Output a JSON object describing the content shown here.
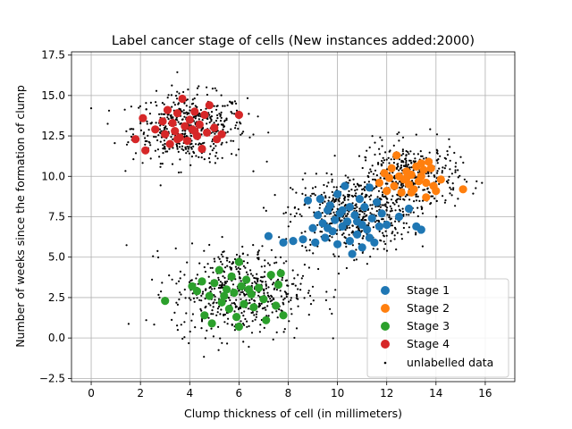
{
  "chart_data": {
    "type": "scatter",
    "title": "Label cancer stage of cells (New instances added:2000)",
    "xlabel": "Clump thickness of cell (in millimeters)",
    "ylabel": "Number of weeks since the formation of clump",
    "xlim": [
      -0.8,
      17.2
    ],
    "ylim": [
      -2.7,
      17.7
    ],
    "xticks": [
      0,
      2,
      4,
      6,
      8,
      10,
      12,
      14,
      16
    ],
    "yticks": [
      -2.5,
      0.0,
      2.5,
      5.0,
      7.5,
      10.0,
      12.5,
      15.0,
      17.5
    ],
    "xtick_labels": [
      "0",
      "2",
      "4",
      "6",
      "8",
      "10",
      "12",
      "14",
      "16"
    ],
    "ytick_labels": [
      "−2.5",
      "0.0",
      "2.5",
      "5.0",
      "7.5",
      "10.0",
      "12.5",
      "15.0",
      "17.5"
    ],
    "grid": true,
    "legend_position": "lower-right",
    "series": [
      {
        "name": "Stage 1",
        "color": "#1f77b4",
        "marker": "large-dot",
        "points": [
          [
            7.2,
            6.3
          ],
          [
            7.8,
            5.9
          ],
          [
            8.2,
            6.0
          ],
          [
            8.6,
            6.1
          ],
          [
            8.8,
            8.5
          ],
          [
            9.0,
            6.8
          ],
          [
            9.1,
            5.9
          ],
          [
            9.2,
            7.6
          ],
          [
            9.3,
            8.6
          ],
          [
            9.4,
            7.1
          ],
          [
            9.5,
            6.2
          ],
          [
            9.6,
            7.9
          ],
          [
            9.7,
            8.2
          ],
          [
            9.8,
            6.6
          ],
          [
            9.9,
            7.3
          ],
          [
            10.0,
            5.8
          ],
          [
            10.0,
            8.9
          ],
          [
            10.1,
            7.7
          ],
          [
            10.2,
            6.9
          ],
          [
            10.3,
            9.4
          ],
          [
            10.4,
            7.2
          ],
          [
            10.5,
            6.0
          ],
          [
            10.5,
            8.1
          ],
          [
            10.6,
            5.2
          ],
          [
            10.7,
            7.6
          ],
          [
            10.8,
            6.4
          ],
          [
            10.9,
            8.6
          ],
          [
            11.0,
            5.6
          ],
          [
            11.0,
            7.0
          ],
          [
            11.1,
            8.1
          ],
          [
            11.2,
            6.7
          ],
          [
            11.3,
            9.3
          ],
          [
            11.4,
            7.4
          ],
          [
            11.5,
            5.9
          ],
          [
            11.6,
            8.4
          ],
          [
            11.7,
            6.9
          ],
          [
            11.8,
            7.7
          ],
          [
            12.0,
            7.0
          ],
          [
            12.5,
            7.5
          ],
          [
            12.9,
            8.0
          ],
          [
            13.2,
            6.9
          ],
          [
            13.4,
            6.7
          ],
          [
            10.2,
            7.9
          ],
          [
            9.6,
            6.8
          ],
          [
            10.8,
            7.2
          ],
          [
            11.3,
            6.2
          ]
        ]
      },
      {
        "name": "Stage 2",
        "color": "#ff7f0e",
        "marker": "large-dot",
        "points": [
          [
            11.7,
            9.6
          ],
          [
            11.9,
            10.2
          ],
          [
            12.0,
            9.1
          ],
          [
            12.1,
            9.9
          ],
          [
            12.2,
            10.5
          ],
          [
            12.3,
            9.4
          ],
          [
            12.4,
            11.3
          ],
          [
            12.5,
            10.0
          ],
          [
            12.6,
            9.0
          ],
          [
            12.7,
            9.8
          ],
          [
            12.8,
            10.3
          ],
          [
            12.9,
            9.5
          ],
          [
            13.0,
            10.1
          ],
          [
            13.1,
            9.2
          ],
          [
            13.2,
            10.6
          ],
          [
            13.3,
            9.7
          ],
          [
            13.4,
            10.0
          ],
          [
            13.5,
            10.4
          ],
          [
            13.6,
            9.6
          ],
          [
            13.6,
            8.7
          ],
          [
            13.7,
            10.9
          ],
          [
            13.8,
            10.5
          ],
          [
            13.9,
            9.4
          ],
          [
            14.0,
            9.1
          ],
          [
            14.2,
            9.8
          ],
          [
            15.1,
            9.2
          ],
          [
            13.0,
            9.0
          ],
          [
            12.8,
            9.9
          ],
          [
            13.4,
            10.8
          ]
        ]
      },
      {
        "name": "Stage 3",
        "color": "#2ca02c",
        "marker": "large-dot",
        "points": [
          [
            3.0,
            2.3
          ],
          [
            4.1,
            3.2
          ],
          [
            4.3,
            2.9
          ],
          [
            4.5,
            3.5
          ],
          [
            4.6,
            1.4
          ],
          [
            4.8,
            2.6
          ],
          [
            4.9,
            0.9
          ],
          [
            5.0,
            3.4
          ],
          [
            5.2,
            4.2
          ],
          [
            5.3,
            2.2
          ],
          [
            5.5,
            3.0
          ],
          [
            5.6,
            1.8
          ],
          [
            5.7,
            3.8
          ],
          [
            5.8,
            2.8
          ],
          [
            5.9,
            1.3
          ],
          [
            6.0,
            4.7
          ],
          [
            6.0,
            0.7
          ],
          [
            6.1,
            3.2
          ],
          [
            6.2,
            2.1
          ],
          [
            6.3,
            3.6
          ],
          [
            6.5,
            2.7
          ],
          [
            6.6,
            1.9
          ],
          [
            6.8,
            3.1
          ],
          [
            7.0,
            2.4
          ],
          [
            7.1,
            1.1
          ],
          [
            7.3,
            3.9
          ],
          [
            7.5,
            2.0
          ],
          [
            7.6,
            3.3
          ],
          [
            7.7,
            4.0
          ],
          [
            7.8,
            1.4
          ],
          [
            5.4,
            2.6
          ],
          [
            6.4,
            3.0
          ]
        ]
      },
      {
        "name": "Stage 4",
        "color": "#d62728",
        "marker": "large-dot",
        "points": [
          [
            1.8,
            12.3
          ],
          [
            2.1,
            13.6
          ],
          [
            2.2,
            11.6
          ],
          [
            2.6,
            12.9
          ],
          [
            2.9,
            13.4
          ],
          [
            3.0,
            12.6
          ],
          [
            3.1,
            14.1
          ],
          [
            3.2,
            12.0
          ],
          [
            3.3,
            13.3
          ],
          [
            3.4,
            12.8
          ],
          [
            3.5,
            13.9
          ],
          [
            3.6,
            12.4
          ],
          [
            3.7,
            14.8
          ],
          [
            3.8,
            13.1
          ],
          [
            3.9,
            12.2
          ],
          [
            4.0,
            13.5
          ],
          [
            4.1,
            12.9
          ],
          [
            4.2,
            14.0
          ],
          [
            4.3,
            12.5
          ],
          [
            4.4,
            13.2
          ],
          [
            4.5,
            11.7
          ],
          [
            4.6,
            13.8
          ],
          [
            4.7,
            12.7
          ],
          [
            4.8,
            14.4
          ],
          [
            5.0,
            13.0
          ],
          [
            5.1,
            12.3
          ],
          [
            5.3,
            12.6
          ],
          [
            6.0,
            13.8
          ],
          [
            4.2,
            12.8
          ],
          [
            3.5,
            12.3
          ]
        ]
      }
    ],
    "unlabelled": {
      "name": "unlabelled data",
      "color": "#000000",
      "marker": "small-dot",
      "count": 2000,
      "clusters": [
        {
          "center": [
            4.0,
            13.0
          ],
          "spread": [
            1.15,
            1.05
          ],
          "count": 500
        },
        {
          "center": [
            10.6,
            7.6
          ],
          "spread": [
            1.2,
            1.15
          ],
          "count": 520
        },
        {
          "center": [
            12.9,
            10.0
          ],
          "spread": [
            1.0,
            1.0
          ],
          "count": 430
        },
        {
          "center": [
            6.0,
            2.9
          ],
          "spread": [
            1.35,
            1.35
          ],
          "count": 550
        }
      ]
    }
  }
}
